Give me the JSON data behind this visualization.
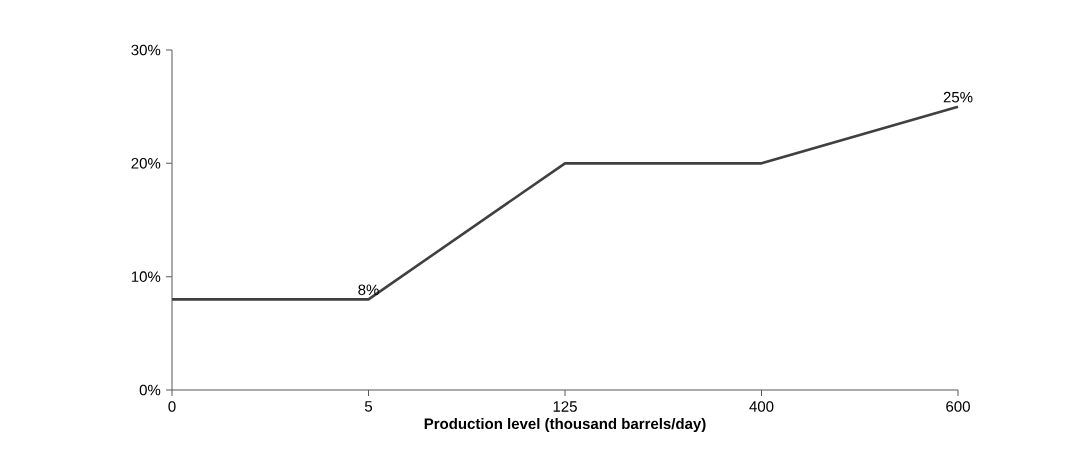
{
  "chart_data": {
    "type": "line",
    "xlabel": "Production level (thousand barrels/day)",
    "categories": [
      "0",
      "5",
      "125",
      "400",
      "600"
    ],
    "values": [
      8,
      8,
      20,
      20,
      25
    ],
    "value_labels": [
      null,
      "8%",
      null,
      null,
      "25%"
    ],
    "color": "#404040",
    "ylim": [
      0,
      30
    ],
    "yticks": [
      {
        "value": 0,
        "label": "0%"
      },
      {
        "value": 10,
        "label": "10%"
      },
      {
        "value": 20,
        "label": "20%"
      },
      {
        "value": 30,
        "label": "30%"
      }
    ],
    "grid": false,
    "marker": "none",
    "line_style": "solid"
  }
}
